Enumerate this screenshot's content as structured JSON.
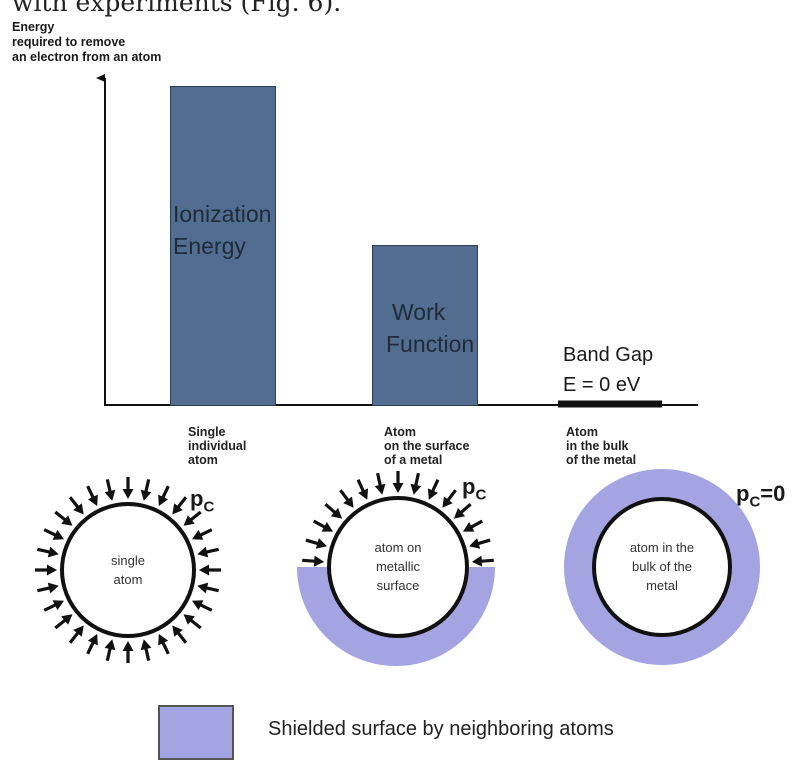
{
  "top_text": "with experiments (Fig. 6).",
  "y_axis_title": [
    "Energy",
    "required to remove",
    "an electron from an atom"
  ],
  "bars": [
    {
      "label_lines": [
        "Ionization",
        "Energy"
      ],
      "category_lines": [
        "Single",
        "individual",
        "atom"
      ]
    },
    {
      "label_lines": [
        "Work",
        "Function"
      ],
      "category_lines": [
        "Atom",
        "on the surface",
        "of a metal"
      ]
    }
  ],
  "band_gap": {
    "lines": [
      "Band Gap",
      "E = 0 eV"
    ],
    "category_lines": [
      "Atom",
      "in the bulk",
      "of the metal"
    ]
  },
  "circles": [
    {
      "label_lines": [
        "single",
        "atom"
      ],
      "pressure": {
        "main": "p",
        "sub": "C",
        "suffix": ""
      }
    },
    {
      "label_lines": [
        "atom on",
        "metallic",
        "surface"
      ],
      "pressure": {
        "main": "p",
        "sub": "C",
        "suffix": ""
      }
    },
    {
      "label_lines": [
        "atom in the",
        "bulk of the",
        "metal"
      ],
      "pressure": {
        "main": "p",
        "sub": "C",
        "suffix": "=0"
      }
    }
  ],
  "legend": {
    "text": "Shielded surface by neighboring atoms"
  },
  "colors": {
    "bar_fill": "#536d91",
    "shield_fill": "#a4a4e2",
    "ink": "#111111"
  }
}
